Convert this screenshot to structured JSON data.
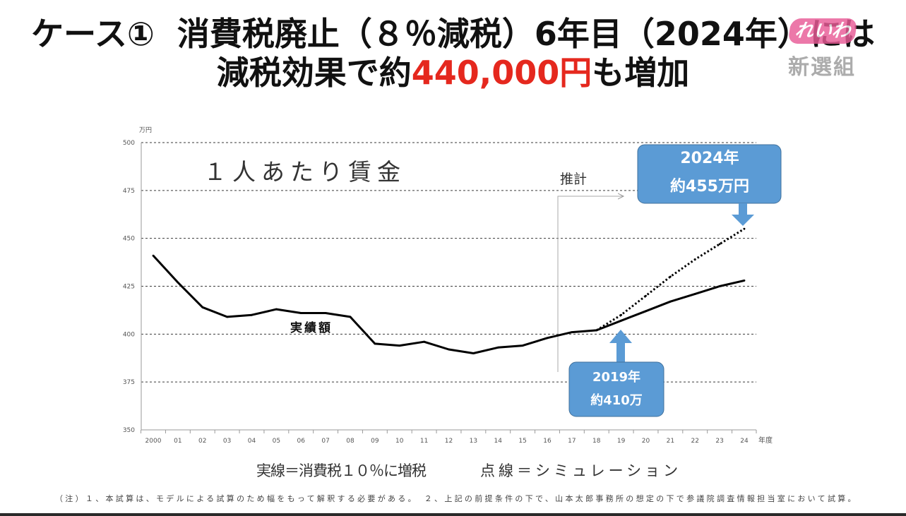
{
  "slide": {
    "title_line1": "ケース①  消費税廃止（８％減税）6年目（2024年）には",
    "title_line2": {
      "before": "減税効果で約",
      "highlight": "440,000円",
      "after": "も増加"
    },
    "colors": {
      "title": "#111111",
      "highlight": "#e5281e"
    }
  },
  "logo": {
    "top_text": "れいわ",
    "bottom_text": "新選組",
    "color": "#e95b97"
  },
  "chart_data": {
    "type": "line",
    "title": "１人あたり賃金",
    "y_unit": "万円",
    "x_unit": "年度",
    "ylim": [
      350,
      500
    ],
    "yticks": [
      500,
      475,
      450,
      425,
      400,
      375,
      350
    ],
    "grid": true,
    "x": [
      2000,
      2001,
      2002,
      2003,
      2004,
      2005,
      2006,
      2007,
      2008,
      2009,
      2010,
      2011,
      2012,
      2013,
      2014,
      2015,
      2016,
      2017,
      2018,
      2019,
      2020,
      2021,
      2022,
      2023,
      2024
    ],
    "xtick_labels": [
      "2000",
      "01",
      "02",
      "03",
      "04",
      "05",
      "06",
      "07",
      "08",
      "09",
      "10",
      "11",
      "12",
      "13",
      "14",
      "15",
      "16",
      "17",
      "18",
      "19",
      "20",
      "21",
      "22",
      "23",
      "24"
    ],
    "series": [
      {
        "legend": "実線＝消費税１０％に増税",
        "dotted": false,
        "color": "#000000",
        "x": [
          2000,
          2001,
          2002,
          2003,
          2004,
          2005,
          2006,
          2007,
          2008,
          2009,
          2010,
          2011,
          2012,
          2013,
          2014,
          2015,
          2016,
          2017,
          2018,
          2019,
          2020,
          2021,
          2022,
          2023,
          2024
        ],
        "values": [
          441,
          427,
          414,
          409,
          410,
          413,
          411,
          411,
          409,
          395,
          394,
          396,
          392,
          390,
          393,
          394,
          398,
          401,
          402,
          407,
          412,
          417,
          421,
          425,
          428
        ]
      },
      {
        "legend": "点線＝シミュレーション",
        "dotted": true,
        "color": "#000000",
        "x": [
          2018,
          2019,
          2020,
          2021,
          2022,
          2023,
          2024
        ],
        "values": [
          402,
          410,
          420,
          430,
          439,
          447,
          455
        ]
      }
    ],
    "annotations": {
      "actual_label": "実績額",
      "estimate_label": "推計"
    },
    "callouts": [
      {
        "year": "2024年",
        "value": "約455万円"
      },
      {
        "year": "2019年",
        "value": "約410万"
      }
    ],
    "callout_color": "#5b9bd5"
  },
  "footnote": "（注）１、本試算は、モデルによる試算のため幅をもって解釈する必要がある。　２、上記の前提条件の下で、山本太郎事務所の想定の下で参議院調査情報担当室において試算。"
}
